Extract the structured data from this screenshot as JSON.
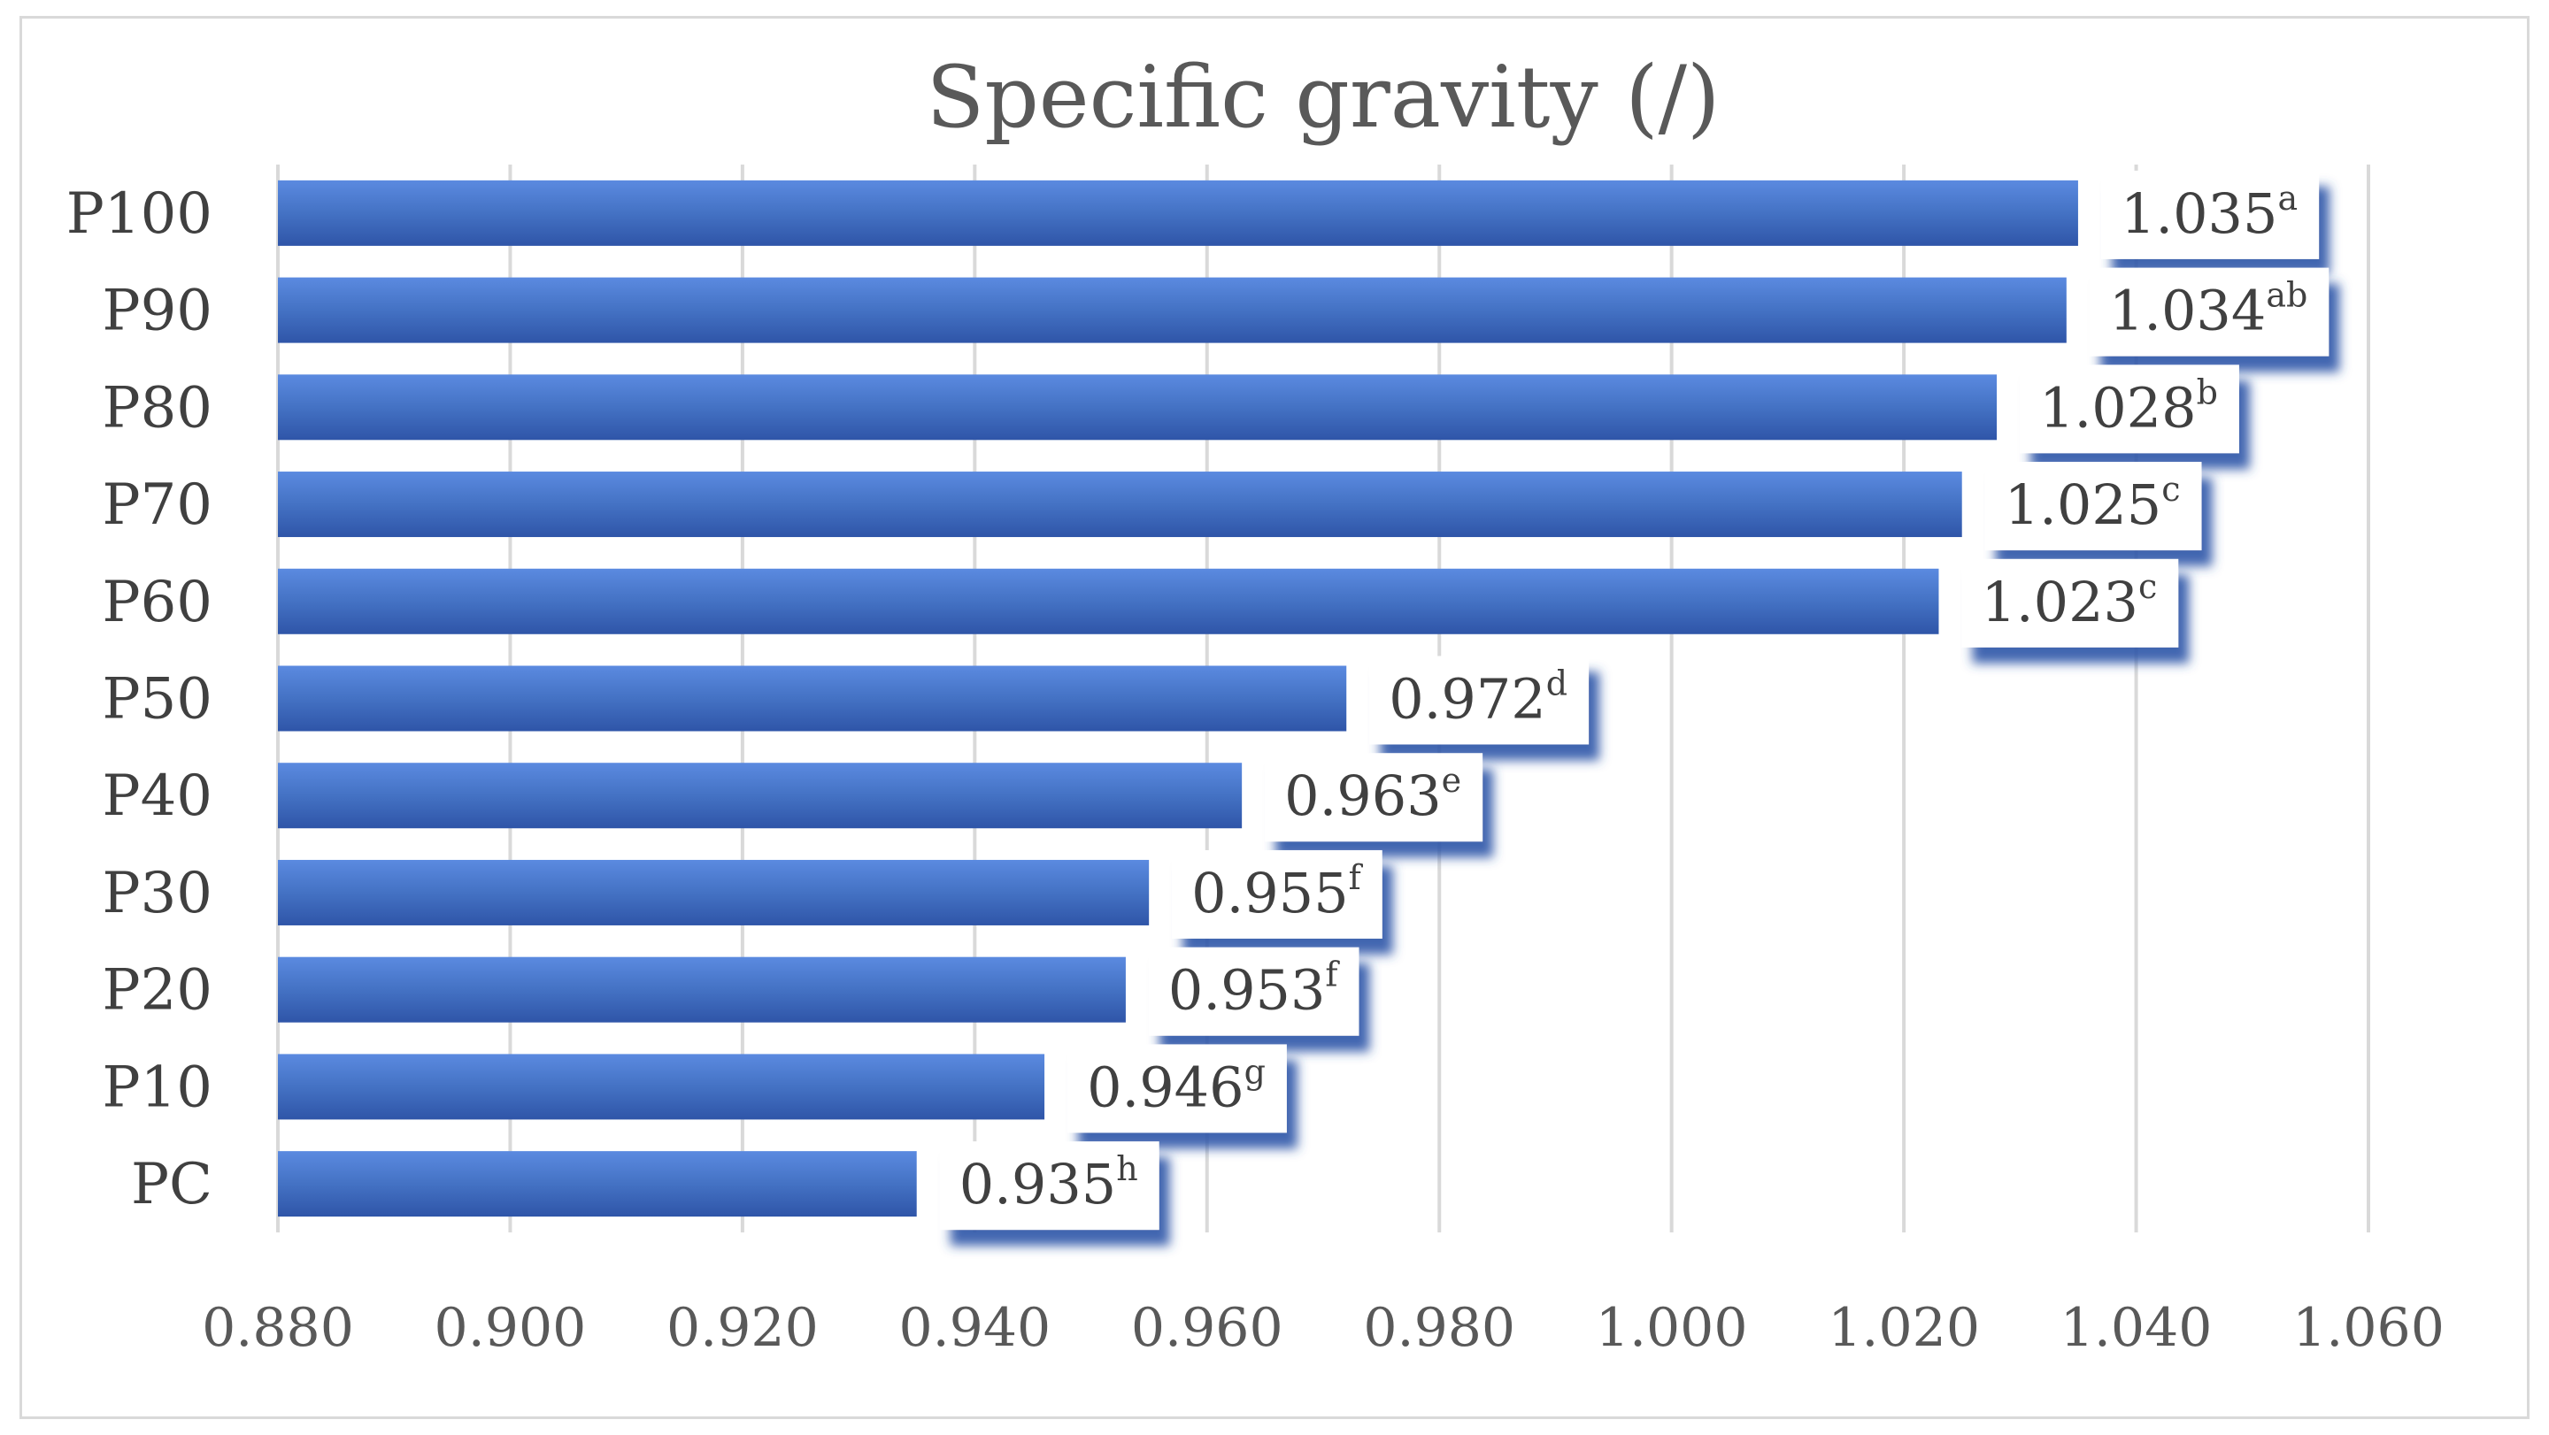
{
  "chart_data": {
    "type": "bar",
    "orientation": "horizontal",
    "title": "Specific gravity (/)",
    "categories": [
      "P100",
      "P90",
      "P80",
      "P70",
      "P60",
      "P50",
      "P40",
      "P30",
      "P20",
      "P10",
      "PC"
    ],
    "values": [
      1.035,
      1.034,
      1.028,
      1.025,
      1.023,
      0.972,
      0.963,
      0.955,
      0.953,
      0.946,
      0.935
    ],
    "value_labels": [
      "1.035",
      "1.034",
      "1.028",
      "1.025",
      "1.023",
      "0.972",
      "0.963",
      "0.955",
      "0.953",
      "0.946",
      "0.935"
    ],
    "significance_letters": [
      "a",
      "ab",
      "b",
      "c",
      "c",
      "d",
      "e",
      "f",
      "f",
      "g",
      "h"
    ],
    "xlim": [
      0.88,
      1.06
    ],
    "xticks": [
      "0.880",
      "0.900",
      "0.920",
      "0.940",
      "0.960",
      "0.980",
      "1.000",
      "1.020",
      "1.040",
      "1.060"
    ],
    "xlabel": "",
    "ylabel": "",
    "grid": "vertical",
    "legend": "none",
    "bar_color": "#4472c4",
    "bar_color_dark": "#2f55a8"
  }
}
